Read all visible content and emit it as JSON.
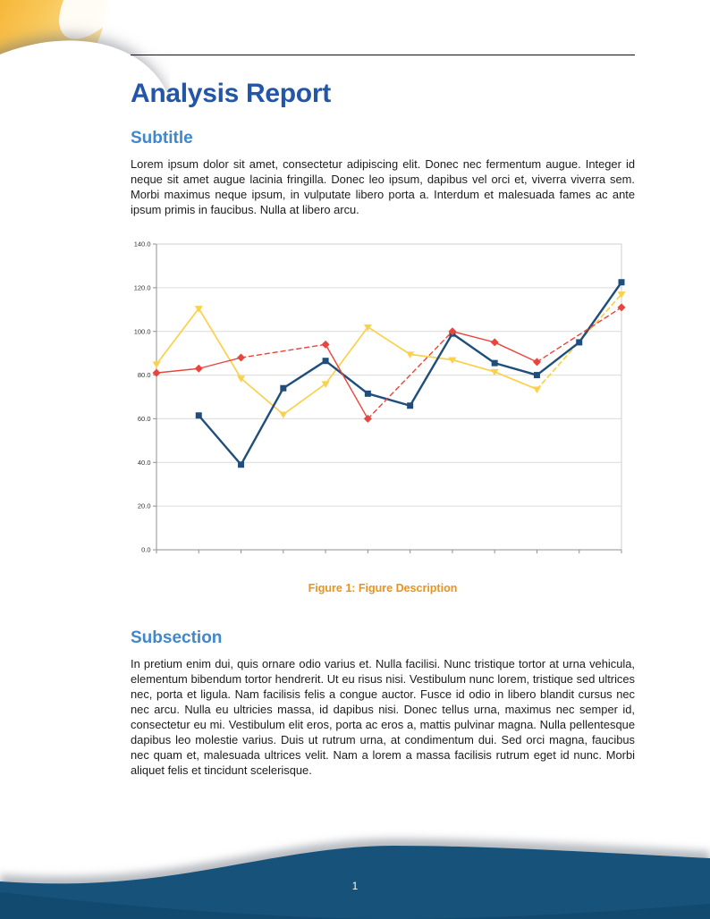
{
  "document": {
    "title": "Analysis Report",
    "sections": [
      {
        "heading": "Subtitle",
        "body": "Lorem ipsum dolor sit amet, consectetur adipiscing elit. Donec nec fermentum augue. Integer id neque sit amet augue lacinia fringilla. Donec leo ipsum, dapibus vel orci et, viverra viverra sem. Morbi maximus neque ipsum, in vulputate libero porta a. Interdum et malesuada fames ac ante ipsum primis in faucibus. Nulla at libero arcu."
      },
      {
        "heading": "Subsection",
        "body": "In pretium enim dui, quis ornare odio varius et. Nulla facilisi. Nunc tristique tortor at urna vehicula, elementum bibendum tortor hendrerit. Ut eu risus nisi. Vestibulum nunc lorem, tristique sed ultrices nec, porta et ligula. Nam facilisis felis a congue auctor. Fusce id odio in libero blandit cursus nec nec arcu. Nulla eu ultricies massa, id dapibus nisi. Donec tellus urna, maximus nec semper id, consectetur eu mi. Vestibulum elit eros, porta ac eros a, mattis pulvinar magna. Nulla pellentesque dapibus leo molestie varius. Duis ut rutrum urna, at condimentum dui. Sed orci magna, faucibus nec quam et, malesuada ultrices velit. Nam a lorem a massa facilisis rutrum eget id nunc. Morbi aliquet felis et tincidunt scelerisque."
      }
    ],
    "figure_caption": "Figure 1: Figure Description",
    "page_number": "1"
  },
  "colors": {
    "title_blue": "#2456A7",
    "heading_blue": "#4187CC",
    "caption_orange": "#E8941F",
    "footer_wave_blue": "#17527B",
    "corner_orange": "#F3A81F"
  },
  "chart_data": {
    "type": "line",
    "title": "",
    "xlabel": "",
    "ylabel": "",
    "x_positions": [
      0,
      1,
      2,
      3,
      4,
      5,
      6,
      7,
      8,
      9,
      10,
      11
    ],
    "x_tick_labels": [
      "",
      "",
      "",
      "",
      "",
      "",
      "",
      "",
      "",
      "",
      "",
      ""
    ],
    "ylim": [
      0,
      140
    ],
    "yticks": [
      0,
      20,
      40,
      60,
      80,
      100,
      120,
      140
    ],
    "ytick_labels": [
      "0.0",
      "20.0",
      "40.0",
      "60.0",
      "80.0",
      "100.0",
      "120.0",
      "140.0"
    ],
    "grid": true,
    "legend": "none",
    "missing_data_style": "dashed-bridge",
    "grid_color": "#DCDCDC",
    "axis_color": "#8F8F8F",
    "border_color": "#CFCFCF",
    "series": [
      {
        "name": "yellow-triangle-series",
        "color": "#FBD14B",
        "marker": "triangle-down",
        "line_style": "solid",
        "width": 1.7,
        "values": [
          85,
          110.5,
          78.5,
          62,
          76,
          102,
          89.5,
          87,
          81.5,
          73.5,
          null,
          117
        ]
      },
      {
        "name": "blue-square-series",
        "color": "#1F4E7C",
        "marker": "square",
        "line_style": "solid",
        "width": 2.4,
        "values": [
          null,
          61.5,
          39,
          74,
          86.5,
          71.5,
          66,
          99,
          85.5,
          80,
          95,
          122.5
        ]
      },
      {
        "name": "red-diamond-series",
        "color": "#E8463C",
        "marker": "diamond",
        "line_style": "solid",
        "width": 1.4,
        "values": [
          81,
          83,
          88,
          null,
          94,
          60,
          null,
          100,
          95,
          86,
          null,
          111
        ]
      }
    ]
  }
}
